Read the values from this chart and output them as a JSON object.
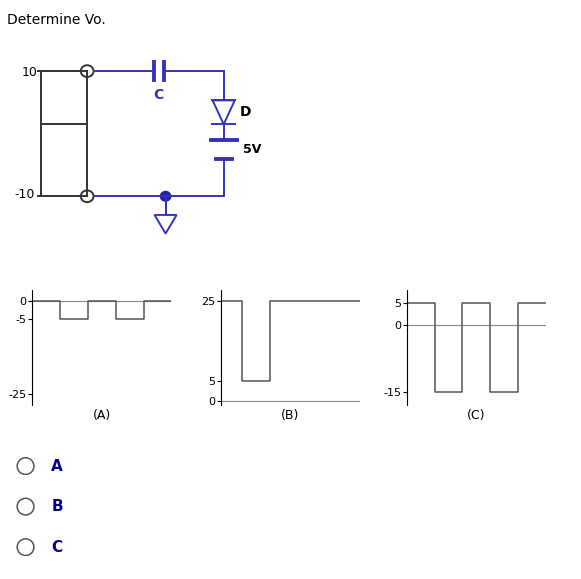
{
  "title": "Determine Vo.",
  "title_color": "#000000",
  "bg_color": "#ffffff",
  "circuit": {
    "wire_color": "#3333bb",
    "component_color": "#3333bb",
    "gnd_color": "#3333bb",
    "dot_color": "#2222aa",
    "line_color": "#333333",
    "cap_label": "C",
    "diode_label": "D",
    "battery_label": "5V"
  },
  "waveform_A": {
    "x": [
      0,
      0.4,
      0.4,
      0.8,
      0.8,
      1.2,
      1.2,
      1.6,
      1.6,
      2.0
    ],
    "y": [
      0,
      0,
      -5,
      -5,
      0,
      0,
      -5,
      -5,
      0,
      0
    ],
    "yticks": [
      -25,
      -5,
      0
    ],
    "ytick_labels": [
      "-25",
      "-5",
      "0"
    ],
    "ymin": -28,
    "ymax": 3,
    "xlabel": "(A)"
  },
  "waveform_B": {
    "x": [
      0,
      0.3,
      0.3,
      0.7,
      0.7,
      1.0,
      1.0,
      1.5,
      1.5,
      2.0
    ],
    "y": [
      25,
      25,
      5,
      5,
      25,
      25,
      25,
      25,
      25,
      25
    ],
    "yticks": [
      0,
      5,
      25
    ],
    "ytick_labels": [
      "0",
      "5",
      "25"
    ],
    "ymin": -1,
    "ymax": 28,
    "xlabel": "(B)"
  },
  "waveform_C": {
    "x": [
      0,
      0.4,
      0.4,
      0.8,
      0.8,
      1.2,
      1.2,
      1.6,
      1.6,
      2.0
    ],
    "y": [
      5,
      5,
      -15,
      -15,
      5,
      5,
      -15,
      -15,
      5,
      5
    ],
    "yticks": [
      -15,
      0,
      5
    ],
    "ytick_labels": [
      "-15",
      "0",
      "5"
    ],
    "ymin": -18,
    "ymax": 8,
    "xlabel": "(C)"
  },
  "options": [
    "A",
    "B",
    "C"
  ],
  "option_color": "#000000",
  "option_label_color": "#000088"
}
